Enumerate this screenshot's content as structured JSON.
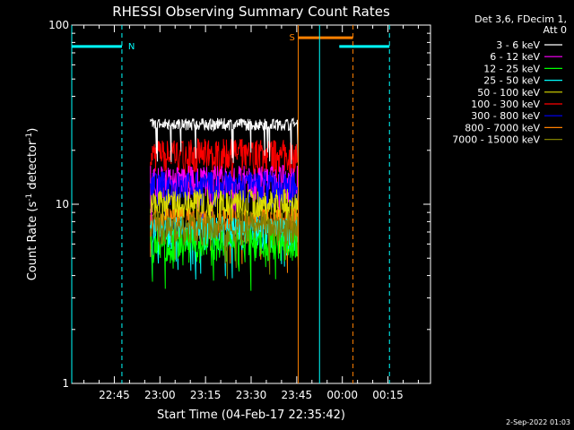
{
  "chart_data": {
    "type": "line",
    "title": "RHESSI Observing Summary Count Rates",
    "xlabel": "Start Time (04-Feb-17 22:35:42)",
    "ylabel_main": "Count Rate (s",
    "ylabel_sup1": "-1",
    "ylabel_mid": " detector",
    "ylabel_sup2": "-1",
    "ylabel_end": ")",
    "y_scale": "log",
    "ylim": [
      1,
      100
    ],
    "xlim_minutes": [
      -14,
      104
    ],
    "x_tick_labels": [
      {
        "label": "22:45",
        "minutes": 0
      },
      {
        "label": "23:00",
        "minutes": 15
      },
      {
        "label": "23:15",
        "minutes": 30
      },
      {
        "label": "23:30",
        "minutes": 45
      },
      {
        "label": "23:45",
        "minutes": 60
      },
      {
        "label": "00:00",
        "minutes": 75
      },
      {
        "label": "00:15",
        "minutes": 90
      }
    ],
    "y_tick_labels": [
      {
        "label": "1",
        "value": 1
      },
      {
        "label": "10",
        "value": 10
      },
      {
        "label": "100",
        "value": 100
      }
    ],
    "legend_placement": "right",
    "legend_header": [
      "Det 3,6, FDecim 1,",
      "Att 0"
    ],
    "data_window_minutes": [
      11.9,
      60.5
    ],
    "series": [
      {
        "name": "3 - 6 keV",
        "color": "#ffffff",
        "level": 28
      },
      {
        "name": "6 - 12 keV",
        "color": "#ff00ff",
        "level": 13.5
      },
      {
        "name": "12 - 25 keV",
        "color": "#00ff00",
        "level": 6
      },
      {
        "name": "25 - 50 keV",
        "color": "#00ffff",
        "level": 7
      },
      {
        "name": "50 - 100 keV",
        "color": "#dddd00",
        "level": 10
      },
      {
        "name": "100 - 300 keV",
        "color": "#ff0000",
        "level": 19
      },
      {
        "name": "300 - 800 keV",
        "color": "#0000ff",
        "level": 12.5
      },
      {
        "name": "800 - 7000 keV",
        "color": "#ff8000",
        "level": 7.8
      },
      {
        "name": "7000 - 15000 keV",
        "color": "#808000",
        "level": 7.5
      }
    ],
    "annotations": [
      {
        "kind": "segment",
        "label": "N",
        "color": "#00ffff",
        "start": -14,
        "end": 2.5,
        "y": 76
      },
      {
        "kind": "segment",
        "label": "S",
        "color": "#ff8000",
        "start": 60.5,
        "end": 78.5,
        "y": 85
      },
      {
        "kind": "segment",
        "label": "",
        "color": "#00ffff",
        "start": 74,
        "end": 90.5,
        "y": 76
      },
      {
        "kind": "vline",
        "color": "#00ffff",
        "style": "solid",
        "x": -14
      },
      {
        "kind": "vline",
        "color": "#00ffff",
        "style": "dashed",
        "x": 2.5
      },
      {
        "kind": "vline",
        "color": "#ff8000",
        "style": "solid",
        "x": 60.5
      },
      {
        "kind": "vline",
        "color": "#00ffff",
        "style": "solid",
        "x": 67.5
      },
      {
        "kind": "vline",
        "color": "#ff8000",
        "style": "dashed",
        "x": 78.5
      },
      {
        "kind": "vline",
        "color": "#00ffff",
        "style": "dashed",
        "x": 90.5
      }
    ],
    "footer": "2-Sep-2022 01:03"
  }
}
